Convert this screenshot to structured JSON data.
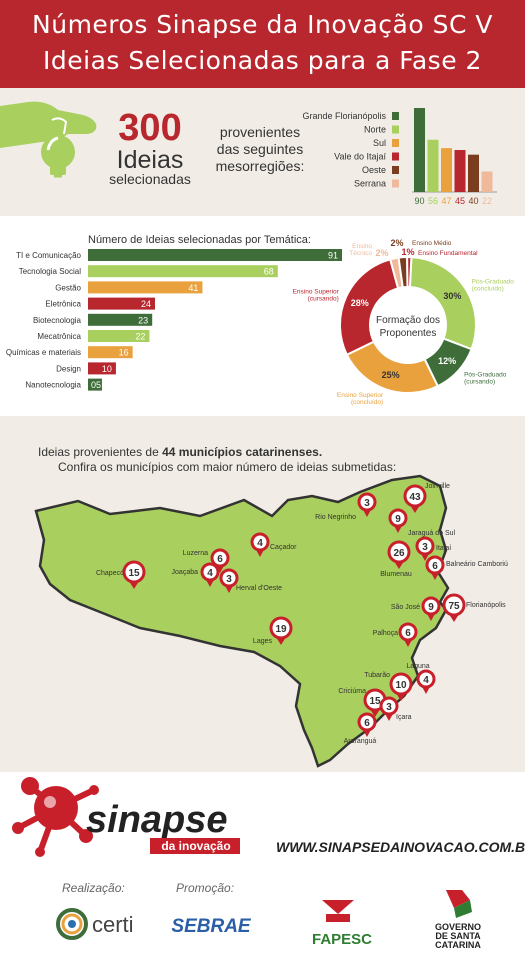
{
  "header": {
    "title_line1": "Números Sinapse da Inovação SC V",
    "title_line2": "Ideias Selecionadas para a Fase 2"
  },
  "summary": {
    "count": "300",
    "ideas_word": "Ideias",
    "selected_word": "selecionadas",
    "origin_line1": "provenientes",
    "origin_line2": "das seguintes",
    "origin_line3": "mesorregiões:"
  },
  "colors": {
    "red": "#b8262e",
    "dark_green": "#3f6d3a",
    "light_green": "#a9cf5f",
    "orange": "#e9a13e",
    "brown": "#7a3d1f",
    "peach": "#f0b99a",
    "bg": "#f1ede6"
  },
  "chart_data": [
    {
      "type": "bar",
      "orientation": "vertical",
      "categories": [
        "Grande Florianópolis",
        "Norte",
        "Sul",
        "Vale do Itajaí",
        "Oeste",
        "Serrana"
      ],
      "values": [
        90,
        56,
        47,
        45,
        40,
        22
      ],
      "colors": [
        "#3f6d3a",
        "#a9cf5f",
        "#e9a13e",
        "#b8262e",
        "#7a3d1f",
        "#f0b99a"
      ],
      "legend": "left"
    },
    {
      "type": "bar",
      "orientation": "horizontal",
      "title": "Número de Ideias selecionadas por Temática:",
      "categories": [
        "TI e Comunicação",
        "Tecnologia Social",
        "Gestão",
        "Eletrônica",
        "Biotecnologia",
        "Mecatrônica",
        "Químicas e materiais",
        "Design",
        "Nanotecnologia"
      ],
      "values": [
        91,
        68,
        41,
        24,
        23,
        22,
        16,
        10,
        5
      ],
      "value_labels": [
        "91",
        "68",
        "41",
        "24",
        "23",
        "22",
        "16",
        "10",
        "05"
      ],
      "colors": [
        "#3f6d3a",
        "#a9cf5f",
        "#e9a13e",
        "#b8262e",
        "#3f6d3a",
        "#a9cf5f",
        "#e9a13e",
        "#b8262e",
        "#3f6d3a"
      ],
      "xlim": [
        0,
        91
      ]
    },
    {
      "type": "pie",
      "donut": true,
      "center_label_line1": "Formação dos",
      "center_label_line2": "Proponentes",
      "slices": [
        {
          "value": 30,
          "label": "30%",
          "name_line1": "Pós-Graduado",
          "name_line2": "(concluído)",
          "color": "#a9cf5f"
        },
        {
          "value": 12,
          "label": "12%",
          "name_line1": "Pós-Graduado",
          "name_line2": "(cursando)",
          "color": "#3f6d3a"
        },
        {
          "value": 25,
          "label": "25%",
          "name_line1": "Ensino Superior",
          "name_line2": "(concluído)",
          "color": "#e9a13e"
        },
        {
          "value": 28,
          "label": "28%",
          "name_line1": "Ensino Superior",
          "name_line2": "(cursando)",
          "color": "#b8262e"
        },
        {
          "value": 2,
          "label": "2%",
          "name_line1": "Ensino",
          "name_line2": "Técnico",
          "color": "#f0b99a"
        },
        {
          "value": 2,
          "label": "2%",
          "name_line1": "Ensino Médio",
          "name_line2": "",
          "color": "#7a3d1f"
        },
        {
          "value": 1,
          "label": "1%",
          "name_line1": "Ensino Fundamental",
          "name_line2": "",
          "color": "#b8262e"
        }
      ]
    }
  ],
  "map": {
    "intro_prefix": "Ideias provenientes de ",
    "intro_bold": "44 municípios catarinenses.",
    "intro_line2": "Confira os municípios com maior número de ideias submetidas:",
    "cities": [
      {
        "name": "Joinville",
        "count": "43"
      },
      {
        "name": "Rio Negrinho",
        "count": "3"
      },
      {
        "name": "Jaraguá do Sul",
        "count": "9"
      },
      {
        "name": "Caçador",
        "count": "4"
      },
      {
        "name": "Itajaí",
        "count": "3"
      },
      {
        "name": "Blumenau",
        "count": "26"
      },
      {
        "name": "Balneário Camboriú",
        "count": "6"
      },
      {
        "name": "Luzerna",
        "count": "6"
      },
      {
        "name": "Joaçaba",
        "count": "4"
      },
      {
        "name": "Herval d'Oeste",
        "count": "3"
      },
      {
        "name": "Chapecó",
        "count": "15"
      },
      {
        "name": "São José",
        "count": "9"
      },
      {
        "name": "Florianópolis",
        "count": "75"
      },
      {
        "name": "Palhoça",
        "count": "6"
      },
      {
        "name": "Lages",
        "count": "19"
      },
      {
        "name": "Laguna",
        "count": "4"
      },
      {
        "name": "Tubarão",
        "count": "10"
      },
      {
        "name": "Criciúma",
        "count": "15"
      },
      {
        "name": "Içara",
        "count": "3"
      },
      {
        "name": "Araranguá",
        "count": "6"
      }
    ]
  },
  "footer": {
    "brand": "sinapse",
    "brand_sub": "da inovação",
    "url_main": "WWW.SINAPSEDAINOVACAO.COM.BR/",
    "url_sc": "SC",
    "realizacao": "Realização:",
    "promocao": "Promoção:",
    "certi": "certi",
    "sebrae": "SEBRAE",
    "fapesc": "FAPESC",
    "gov_line1": "GOVERNO",
    "gov_line2": "DE SANTA",
    "gov_line3": "CATARINA"
  }
}
